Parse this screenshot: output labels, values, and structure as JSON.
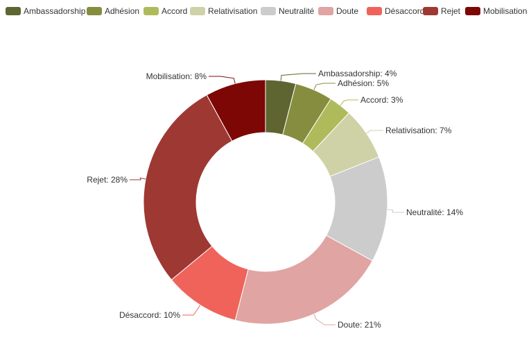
{
  "chart_data": {
    "type": "pie",
    "donut": true,
    "legend_position": "top",
    "slices": [
      {
        "name": "Ambassadorship",
        "value": 4,
        "label": "Ambassadorship: 4%",
        "color": "#5e6530"
      },
      {
        "name": "Adhésion",
        "value": 5,
        "label": "Adhésion: 5%",
        "color": "#868d3f"
      },
      {
        "name": "Accord",
        "value": 3,
        "label": "Accord: 3%",
        "color": "#afbb5b"
      },
      {
        "name": "Relativisation",
        "value": 7,
        "label": "Relativisation: 7%",
        "color": "#cfd2a6"
      },
      {
        "name": "Neutralité",
        "value": 14,
        "label": "Neutralité: 14%",
        "color": "#cccccc"
      },
      {
        "name": "Doute",
        "value": 21,
        "label": "Doute: 21%",
        "color": "#e0a4a2"
      },
      {
        "name": "Désaccord",
        "value": 10,
        "label": "Désaccord: 10%",
        "color": "#f0635a"
      },
      {
        "name": "Rejet",
        "value": 28,
        "label": "Rejet: 28%",
        "color": "#9e3832"
      },
      {
        "name": "Mobilisation",
        "value": 8,
        "label": "Mobilisation: 8%",
        "color": "#7c0705"
      }
    ]
  }
}
